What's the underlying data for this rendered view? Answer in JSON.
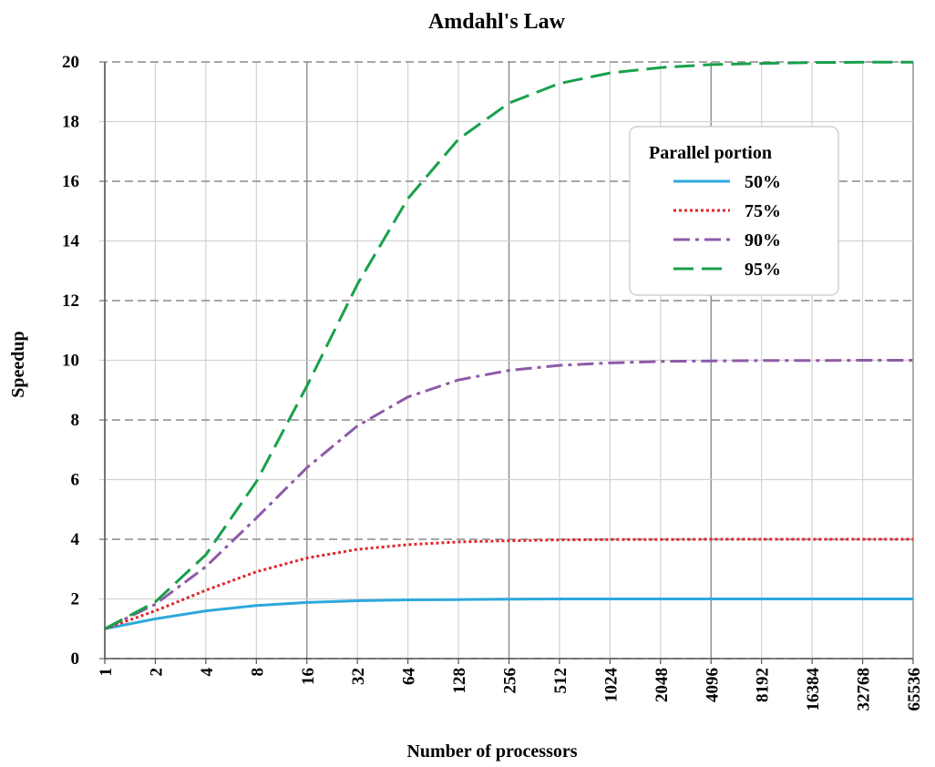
{
  "chart_data": {
    "type": "line",
    "title": "Amdahl's Law",
    "xlabel": "Number of processors",
    "ylabel": "Speedup",
    "x_scale": "log2",
    "categories": [
      "1",
      "2",
      "4",
      "8",
      "16",
      "32",
      "64",
      "128",
      "256",
      "512",
      "1024",
      "2048",
      "4096",
      "8192",
      "16384",
      "32768",
      "65536"
    ],
    "x": [
      1,
      2,
      4,
      8,
      16,
      32,
      64,
      128,
      256,
      512,
      1024,
      2048,
      4096,
      8192,
      16384,
      32768,
      65536
    ],
    "ylim": [
      0,
      20
    ],
    "yticks": [
      "0",
      "2",
      "4",
      "6",
      "8",
      "10",
      "12",
      "14",
      "16",
      "18",
      "20"
    ],
    "legend_title": "Parallel portion",
    "legend_position": "top-right",
    "grid": true,
    "series": [
      {
        "name": "50%",
        "color": "#2ea8dc",
        "style": "solid",
        "values": [
          1.0,
          1.33,
          1.6,
          1.78,
          1.88,
          1.94,
          1.97,
          1.98,
          1.99,
          2.0,
          2.0,
          2.0,
          2.0,
          2.0,
          2.0,
          2.0,
          2.0
        ]
      },
      {
        "name": "75%",
        "color": "#e0262b",
        "style": "dotted",
        "values": [
          1.0,
          1.6,
          2.29,
          2.91,
          3.37,
          3.66,
          3.82,
          3.91,
          3.95,
          3.98,
          3.99,
          3.99,
          4.0,
          4.0,
          4.0,
          4.0,
          4.0
        ]
      },
      {
        "name": "90%",
        "color": "#8e5aa8",
        "style": "dashdot",
        "values": [
          1.0,
          1.82,
          3.08,
          4.71,
          6.4,
          7.8,
          8.77,
          9.34,
          9.66,
          9.83,
          9.91,
          9.96,
          9.98,
          9.99,
          9.99,
          10.0,
          10.0
        ]
      },
      {
        "name": "95%",
        "color": "#18a04c",
        "style": "dashed",
        "values": [
          1.0,
          1.9,
          3.48,
          5.93,
          9.14,
          12.55,
          15.42,
          17.41,
          18.62,
          19.28,
          19.63,
          19.81,
          19.91,
          19.95,
          19.98,
          19.99,
          19.99
        ]
      }
    ]
  }
}
